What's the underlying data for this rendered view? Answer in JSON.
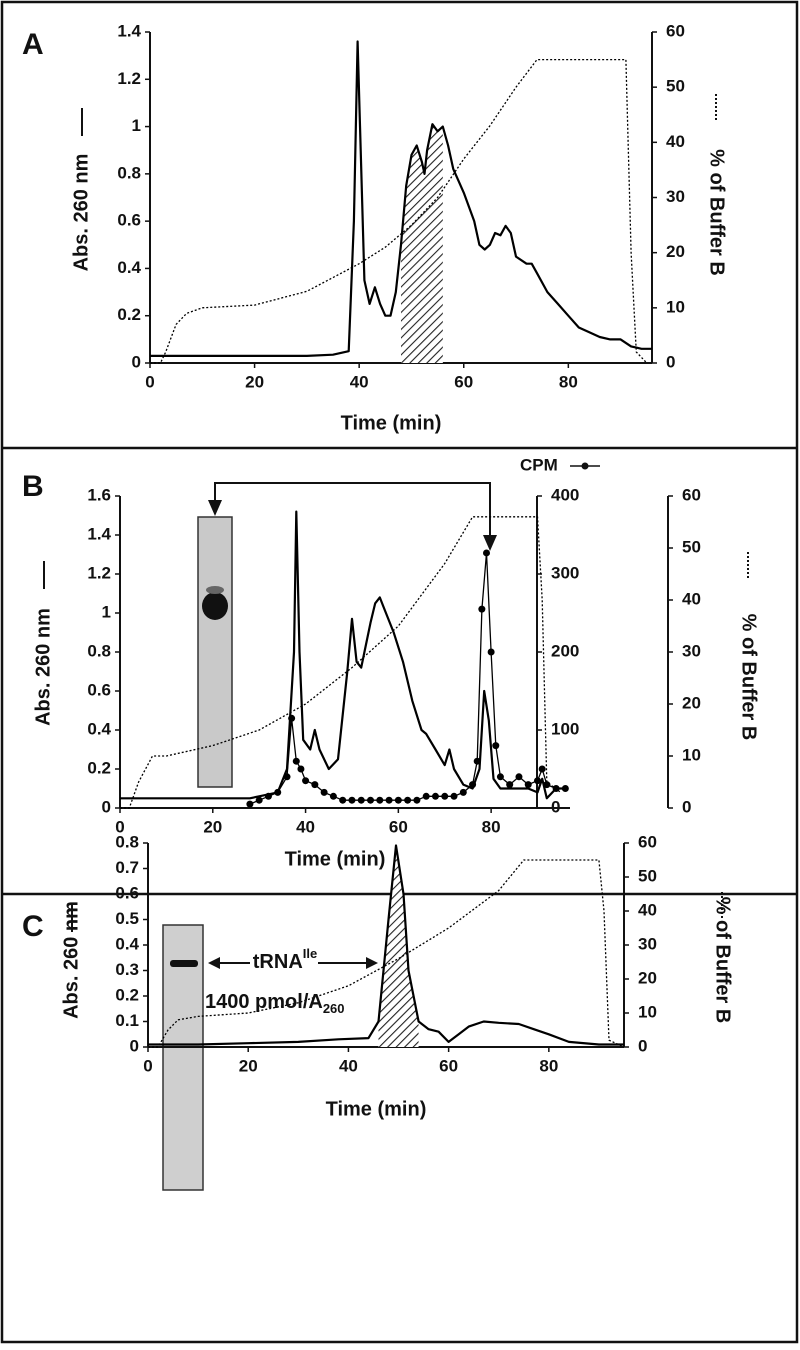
{
  "chart_data": [
    {
      "type": "line",
      "panel_label": "A",
      "xlabel": "Time (min)",
      "ylabel": "Abs. 260 nm",
      "y2label": "% of Buffer B",
      "xlim": [
        0,
        96
      ],
      "xticks": [
        0,
        20,
        40,
        60,
        80
      ],
      "ylim": [
        0,
        1.4
      ],
      "yticks": [
        0,
        0.2,
        0.4,
        0.6,
        0.8,
        1,
        1.2,
        1.4
      ],
      "y2lim": [
        0,
        60
      ],
      "y2ticks": [
        0,
        10,
        20,
        30,
        40,
        50,
        60
      ],
      "shade": [
        48,
        56
      ],
      "series": [
        {
          "color": "#000000",
          "style": "solid",
          "axis": "y",
          "x": [
            0,
            2,
            10,
            20,
            30,
            35,
            38,
            39,
            39.7,
            40.3,
            41,
            42,
            43,
            44,
            45,
            46,
            47,
            48,
            49,
            50,
            51,
            52,
            52.5,
            53,
            54,
            55,
            56,
            57,
            58,
            60,
            62,
            63,
            64,
            65,
            66,
            67,
            68,
            69,
            70,
            72,
            73,
            74,
            76,
            78,
            80,
            82,
            84,
            86,
            88,
            90,
            92,
            94,
            96
          ],
          "values": [
            0.03,
            0.03,
            0.03,
            0.03,
            0.03,
            0.035,
            0.05,
            0.6,
            1.36,
            0.9,
            0.35,
            0.25,
            0.32,
            0.25,
            0.2,
            0.2,
            0.3,
            0.5,
            0.75,
            0.88,
            0.92,
            0.85,
            0.8,
            0.9,
            1.01,
            0.98,
            1.0,
            0.92,
            0.82,
            0.72,
            0.6,
            0.5,
            0.48,
            0.5,
            0.55,
            0.54,
            0.58,
            0.55,
            0.45,
            0.42,
            0.42,
            0.38,
            0.3,
            0.25,
            0.2,
            0.15,
            0.13,
            0.11,
            0.1,
            0.1,
            0.07,
            0.06,
            0.06
          ]
        },
        {
          "color": "#000000",
          "style": "dotted",
          "axis": "y2",
          "x": [
            0,
            2,
            3,
            5,
            7,
            10,
            20,
            30,
            40,
            45,
            50,
            55,
            60,
            65,
            70,
            74,
            90,
            91,
            92,
            93,
            95
          ],
          "values": [
            0,
            0,
            2,
            7,
            9,
            10,
            10.5,
            13,
            18,
            21,
            25,
            30,
            37,
            43,
            50,
            55,
            55,
            55,
            20,
            2,
            0
          ]
        }
      ]
    },
    {
      "type": "line",
      "panel_label": "B",
      "xlabel": "Time (min)",
      "ylabel": "Abs. 260 nm",
      "y2label": "CPM",
      "y3label": "% of Buffer B",
      "xlim": [
        0,
        97
      ],
      "xticks": [
        0,
        20,
        40,
        60,
        80
      ],
      "ylim": [
        0,
        1.6
      ],
      "yticks": [
        0,
        0.2,
        0.4,
        0.6,
        0.8,
        1,
        1.2,
        1.4,
        1.6
      ],
      "y2lim": [
        0,
        400
      ],
      "y2ticks": [
        0,
        100,
        200,
        300,
        400
      ],
      "y3lim": [
        0,
        60
      ],
      "y3ticks": [
        0,
        10,
        20,
        30,
        40,
        50,
        60
      ],
      "series": [
        {
          "color": "#000000",
          "style": "solid",
          "axis": "y",
          "x": [
            0,
            10,
            20,
            28,
            30,
            34,
            36,
            37.5,
            38,
            38.7,
            39.5,
            41,
            42,
            43,
            45,
            47,
            49,
            50,
            51,
            52,
            54,
            55,
            56,
            57,
            59,
            61,
            63,
            65,
            66,
            68,
            70,
            71,
            72,
            74,
            76,
            77.5,
            78.5,
            79.5,
            80.5,
            82,
            85,
            88,
            90,
            91,
            92,
            94,
            96
          ],
          "values": [
            0.05,
            0.05,
            0.05,
            0.05,
            0.06,
            0.08,
            0.2,
            0.8,
            1.52,
            0.8,
            0.35,
            0.3,
            0.4,
            0.3,
            0.2,
            0.25,
            0.7,
            0.97,
            0.75,
            0.72,
            0.95,
            1.05,
            1.08,
            1.02,
            0.9,
            0.75,
            0.55,
            0.4,
            0.38,
            0.3,
            0.22,
            0.3,
            0.2,
            0.12,
            0.1,
            0.2,
            0.6,
            0.45,
            0.15,
            0.1,
            0.1,
            0.1,
            0.08,
            0.15,
            0.05,
            0.1,
            0.1
          ]
        },
        {
          "color": "#000000",
          "style": "thin",
          "axis": "y2",
          "markers": true,
          "x": [
            28,
            30,
            32,
            34,
            36,
            37,
            38,
            39,
            40,
            42,
            44,
            46,
            48,
            50,
            52,
            54,
            56,
            58,
            60,
            62,
            64,
            66,
            68,
            70,
            72,
            74,
            76,
            77,
            78,
            79,
            80,
            81,
            82,
            84,
            86,
            88,
            90,
            91,
            92,
            94,
            96
          ],
          "values": [
            5,
            10,
            15,
            20,
            40,
            115,
            60,
            50,
            35,
            30,
            20,
            15,
            10,
            10,
            10,
            10,
            10,
            10,
            10,
            10,
            10,
            15,
            15,
            15,
            15,
            20,
            30,
            60,
            255,
            327,
            200,
            80,
            40,
            30,
            40,
            30,
            35,
            50,
            30,
            25,
            25
          ]
        },
        {
          "color": "#000000",
          "style": "dotted",
          "axis": "y3",
          "x": [
            0,
            2,
            4,
            7,
            10,
            20,
            30,
            40,
            50,
            60,
            70,
            76,
            80,
            90,
            91,
            92,
            95
          ],
          "values": [
            0,
            0,
            5,
            10,
            10,
            12,
            15,
            20,
            27,
            35,
            47,
            56,
            56,
            56,
            40,
            5,
            3
          ]
        }
      ]
    },
    {
      "type": "line",
      "panel_label": "C",
      "xlabel": "Time (min)",
      "ylabel": "Abs. 260 nm",
      "y2label": "% of Buffer B",
      "xlim": [
        0,
        95
      ],
      "xticks": [
        0,
        20,
        40,
        60,
        80
      ],
      "ylim": [
        0,
        0.8
      ],
      "yticks": [
        0,
        0.1,
        0.2,
        0.3,
        0.4,
        0.5,
        0.6,
        0.7,
        0.8
      ],
      "y2lim": [
        0,
        60
      ],
      "y2ticks": [
        0,
        10,
        20,
        30,
        40,
        50,
        60
      ],
      "shade": [
        46,
        54
      ],
      "annotations": [
        {
          "text": "tRNA",
          "superscript": "Ile"
        },
        {
          "text": "1400 pmol/A",
          "subscript": "260"
        }
      ],
      "series": [
        {
          "color": "#000000",
          "style": "solid",
          "axis": "y",
          "x": [
            0,
            10,
            20,
            30,
            38,
            44,
            46,
            48,
            49.5,
            51,
            52,
            54,
            56,
            58,
            60,
            62,
            64,
            67,
            70,
            74,
            77,
            80,
            84,
            90,
            95
          ],
          "values": [
            0.01,
            0.01,
            0.015,
            0.02,
            0.03,
            0.035,
            0.1,
            0.5,
            0.79,
            0.6,
            0.3,
            0.1,
            0.07,
            0.06,
            0.02,
            0.05,
            0.08,
            0.1,
            0.095,
            0.09,
            0.07,
            0.05,
            0.02,
            0.01,
            0.01
          ]
        },
        {
          "color": "#000000",
          "style": "dotted",
          "axis": "y2",
          "x": [
            0,
            2,
            4,
            6,
            10,
            20,
            30,
            40,
            50,
            60,
            70,
            75,
            90,
            91,
            92,
            95
          ],
          "values": [
            0,
            0,
            5,
            8,
            9,
            10,
            13,
            18,
            26,
            35,
            46,
            55,
            55,
            40,
            2,
            0
          ]
        }
      ]
    }
  ]
}
